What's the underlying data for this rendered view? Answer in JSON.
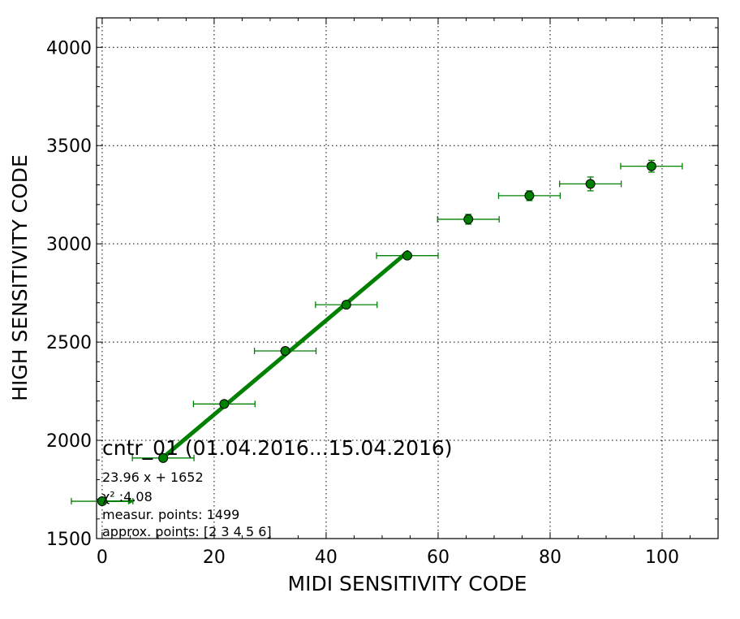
{
  "chart_data": {
    "type": "scatter",
    "xlabel": "MIDI SENSITIVITY CODE",
    "ylabel": "HIGH SENSITIVITY CODE",
    "xlim": [
      -1,
      110
    ],
    "ylim": [
      1500,
      4150
    ],
    "x_ticks": [
      0,
      20,
      40,
      60,
      80,
      100
    ],
    "y_ticks": [
      1500,
      2000,
      2500,
      3000,
      3500,
      4000
    ],
    "grid": true,
    "colors": {
      "series": "#008000",
      "marker_edge": "#000000"
    },
    "points": [
      {
        "x": 0.0,
        "y": 1690,
        "xerr": 5.5,
        "yerr": 0
      },
      {
        "x": 10.9,
        "y": 1910,
        "xerr": 5.5,
        "yerr": 10
      },
      {
        "x": 21.8,
        "y": 2185,
        "xerr": 5.5,
        "yerr": 10
      },
      {
        "x": 32.7,
        "y": 2455,
        "xerr": 5.5,
        "yerr": 10
      },
      {
        "x": 43.6,
        "y": 2690,
        "xerr": 5.5,
        "yerr": 10
      },
      {
        "x": 54.5,
        "y": 2940,
        "xerr": 5.5,
        "yerr": 10
      },
      {
        "x": 65.4,
        "y": 3125,
        "xerr": 5.5,
        "yerr": 25
      },
      {
        "x": 76.3,
        "y": 3245,
        "xerr": 5.5,
        "yerr": 25
      },
      {
        "x": 87.2,
        "y": 3305,
        "xerr": 5.5,
        "yerr": 35
      },
      {
        "x": 98.1,
        "y": 3395,
        "xerr": 5.5,
        "yerr": 30
      }
    ],
    "fit": {
      "slope": 23.96,
      "intercept": 1652,
      "x_range": [
        10.9,
        54.5
      ]
    },
    "annotations": {
      "title": "cntr_01 (01.04.2016...15.04.2016)",
      "equation": "23.96 x + 1652",
      "chi2": "χ² :4.08",
      "measur_points": "measur. points: 1499",
      "approx_points": "approx. points: [2 3 4 5 6]"
    }
  }
}
